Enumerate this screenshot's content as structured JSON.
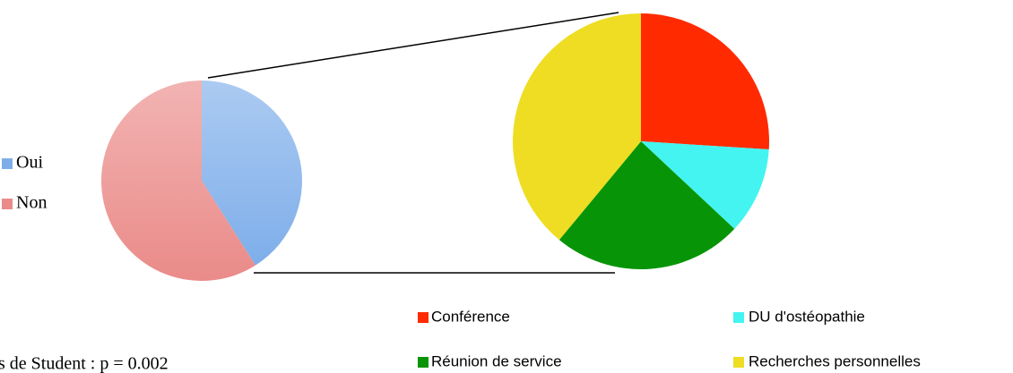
{
  "chart_data": [
    {
      "type": "pie",
      "categories": [
        "Oui",
        "Non"
      ],
      "values": [
        41,
        59
      ],
      "colors": [
        "#7eaeea",
        "#ea8b89"
      ]
    },
    {
      "type": "pie",
      "categories": [
        "Conférence",
        "DU d'ostéopathie",
        "Réunion de service",
        "Recherches personnelles"
      ],
      "values": [
        26,
        11,
        24,
        39
      ],
      "colors": [
        "#ff2a00",
        "#44f4f0",
        "#079507",
        "#eedd22"
      ]
    }
  ],
  "footnote": "s de Student : p = 0.002"
}
